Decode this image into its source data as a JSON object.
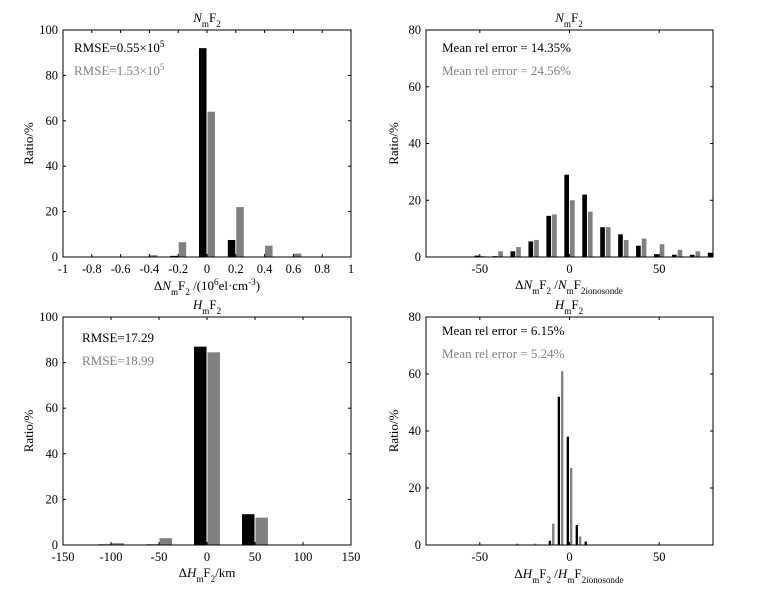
{
  "colors": {
    "series1": "#000000",
    "series2": "#808080",
    "axis": "#000000"
  },
  "chart_data": [
    {
      "type": "bar",
      "title": "NmF2",
      "xlabel": "ΔNmF2 /(10⁶el·cm⁻³)",
      "ylabel": "Ratio/%",
      "xlim": [
        -1,
        1
      ],
      "ylim": [
        0,
        100
      ],
      "xticks": [
        -1,
        -0.8,
        -0.6,
        -0.4,
        -0.2,
        0,
        0.2,
        0.4,
        0.6,
        0.8,
        1
      ],
      "yticks": [
        0,
        20,
        40,
        60,
        80,
        100
      ],
      "bin_width": 0.2,
      "bins": [
        -0.4,
        -0.2,
        0,
        0.2,
        0.4,
        0.6
      ],
      "series": [
        {
          "values": [
            0.0,
            0.5,
            92,
            7.5,
            0.0,
            0.0
          ]
        },
        {
          "values": [
            0.8,
            6.5,
            64,
            22,
            5,
            1.5
          ]
        }
      ],
      "annotations": [
        "RMSE=0.55×10⁵",
        "RMSE=1.53×10⁵"
      ]
    },
    {
      "type": "bar",
      "title": "NmF2",
      "xlabel": "ΔNmF2 /NmF2 ionosonde",
      "ylabel": "Ratio/%",
      "xlim": [
        -80,
        80
      ],
      "ylim": [
        0,
        80
      ],
      "xticks": [
        -50,
        0,
        50
      ],
      "yticks": [
        0,
        20,
        40,
        60,
        80
      ],
      "bin_width": 10,
      "bins": [
        -50,
        -40,
        -30,
        -20,
        -10,
        0,
        10,
        20,
        30,
        40,
        50,
        60,
        70,
        80
      ],
      "series": [
        {
          "values": [
            0.5,
            0.3,
            2,
            5.5,
            14.5,
            29,
            22,
            10.5,
            8,
            4,
            1,
            0.8,
            0.8,
            1.5
          ]
        },
        {
          "values": [
            0.3,
            2,
            3.5,
            6,
            15,
            20,
            16,
            10.5,
            6,
            6.5,
            4.5,
            2.5,
            2,
            0
          ]
        }
      ],
      "annotations": [
        "Mean rel error = 14.35%",
        "Mean rel error = 24.56%"
      ]
    },
    {
      "type": "bar",
      "title": "HmF2",
      "xlabel": "ΔHmF2/km",
      "ylabel": "Ratio/%",
      "xlim": [
        -150,
        150
      ],
      "ylim": [
        0,
        100
      ],
      "xticks": [
        -150,
        -100,
        -50,
        0,
        50,
        100,
        150
      ],
      "yticks": [
        0,
        20,
        40,
        60,
        80,
        100
      ],
      "bin_width": 50,
      "bins": [
        -100,
        -50,
        0,
        50
      ],
      "series": [
        {
          "values": [
            0.3,
            0.3,
            87,
            13.5
          ]
        },
        {
          "values": [
            0.8,
            3,
            84.5,
            12
          ]
        }
      ],
      "annotations": [
        "RMSE=17.29",
        "RMSE=18.99"
      ]
    },
    {
      "type": "bar",
      "title": "HmF2",
      "xlabel": "ΔHmF2 /HmF2 ionosonde",
      "ylabel": "Ratio/%",
      "xlim": [
        -80,
        80
      ],
      "ylim": [
        0,
        80
      ],
      "xticks": [
        -50,
        0,
        50
      ],
      "yticks": [
        0,
        20,
        40,
        60,
        80
      ],
      "bin_width": 5,
      "bins": [
        -30,
        -20,
        -10,
        -5,
        0,
        5,
        10,
        15,
        20
      ],
      "series": [
        {
          "values": [
            0,
            0,
            1.5,
            52,
            38,
            7,
            1.2,
            0,
            0
          ]
        },
        {
          "values": [
            0.5,
            0.5,
            7.5,
            61,
            27,
            3,
            0,
            0,
            0
          ]
        }
      ],
      "annotations": [
        "Mean rel error = 6.15%",
        "Mean rel error = 5.24%"
      ]
    }
  ]
}
